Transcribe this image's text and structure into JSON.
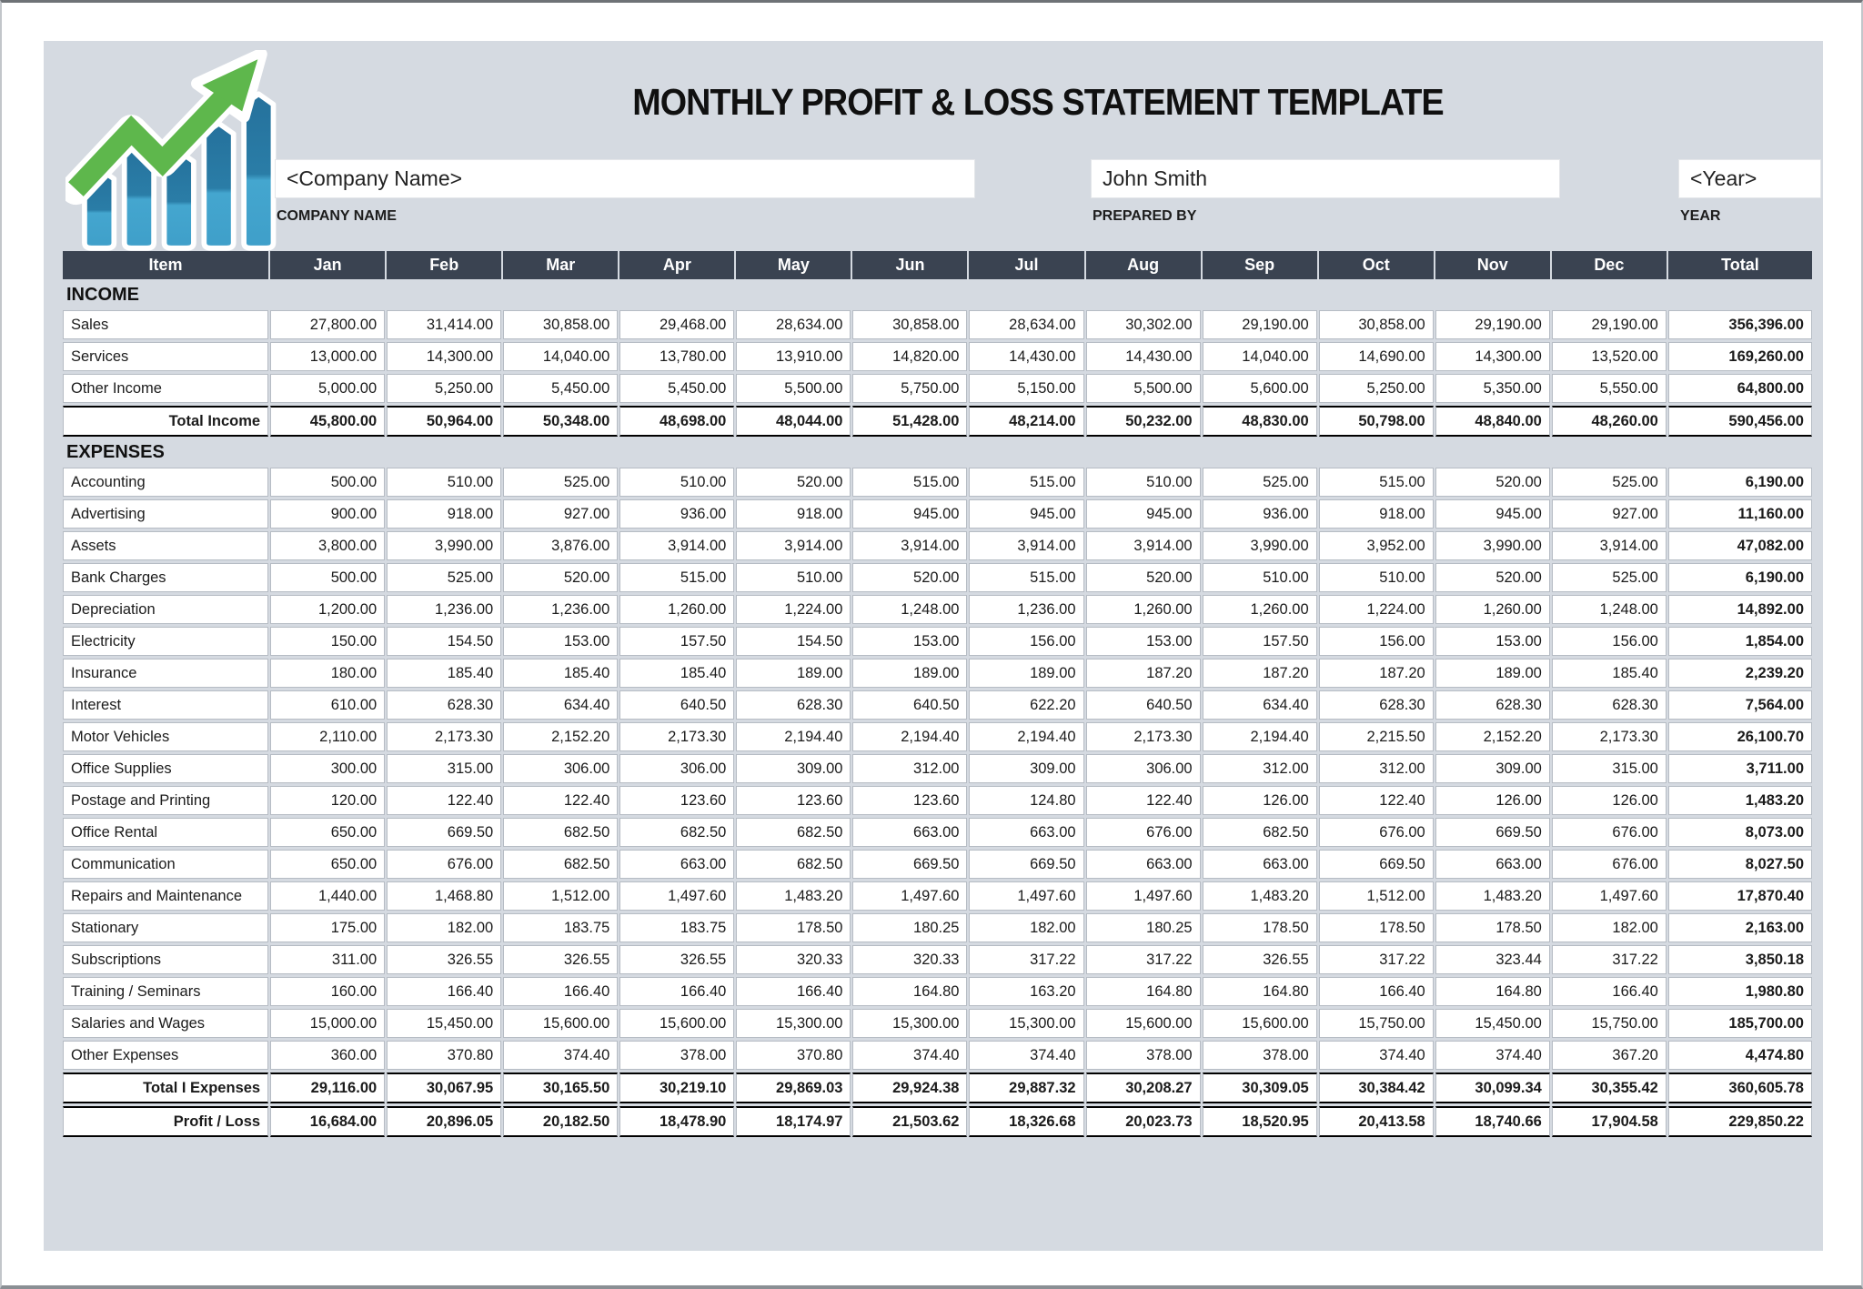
{
  "header": {
    "title": "MONTHLY PROFIT & LOSS STATEMENT TEMPLATE",
    "company": {
      "value": "<Company Name>",
      "label": "COMPANY NAME"
    },
    "prepared_by": {
      "value": "John Smith",
      "label": "PREPARED BY"
    },
    "year": {
      "value": "<Year>",
      "label": "YEAR"
    },
    "logo_icon": "growth-bar-chart-arrow-icon"
  },
  "colors": {
    "sheet_bg": "#d5dae1",
    "header_bg": "#3a4351",
    "logo_green": "#5eb74c",
    "logo_blue_dark": "#25719c",
    "logo_blue_light": "#44a6cf"
  },
  "table": {
    "columns": [
      "Item",
      "Jan",
      "Feb",
      "Mar",
      "Apr",
      "May",
      "Jun",
      "Jul",
      "Aug",
      "Sep",
      "Oct",
      "Nov",
      "Dec",
      "Total"
    ],
    "sections": [
      {
        "name": "INCOME",
        "rows": [
          {
            "label": "Sales",
            "values": [
              "27,800.00",
              "31,414.00",
              "30,858.00",
              "29,468.00",
              "28,634.00",
              "30,858.00",
              "28,634.00",
              "30,302.00",
              "29,190.00",
              "30,858.00",
              "29,190.00",
              "29,190.00"
            ],
            "total": "356,396.00"
          },
          {
            "label": "Services",
            "values": [
              "13,000.00",
              "14,300.00",
              "14,040.00",
              "13,780.00",
              "13,910.00",
              "14,820.00",
              "14,430.00",
              "14,430.00",
              "14,040.00",
              "14,690.00",
              "14,300.00",
              "13,520.00"
            ],
            "total": "169,260.00"
          },
          {
            "label": "Other Income",
            "values": [
              "5,000.00",
              "5,250.00",
              "5,450.00",
              "5,450.00",
              "5,500.00",
              "5,750.00",
              "5,150.00",
              "5,500.00",
              "5,600.00",
              "5,250.00",
              "5,350.00",
              "5,550.00"
            ],
            "total": "64,800.00"
          }
        ],
        "total": {
          "label": "Total Income",
          "values": [
            "45,800.00",
            "50,964.00",
            "50,348.00",
            "48,698.00",
            "48,044.00",
            "51,428.00",
            "48,214.00",
            "50,232.00",
            "48,830.00",
            "50,798.00",
            "48,840.00",
            "48,260.00"
          ],
          "total": "590,456.00"
        }
      },
      {
        "name": "EXPENSES",
        "rows": [
          {
            "label": "Accounting",
            "values": [
              "500.00",
              "510.00",
              "525.00",
              "510.00",
              "520.00",
              "515.00",
              "515.00",
              "510.00",
              "525.00",
              "515.00",
              "520.00",
              "525.00"
            ],
            "total": "6,190.00"
          },
          {
            "label": "Advertising",
            "values": [
              "900.00",
              "918.00",
              "927.00",
              "936.00",
              "918.00",
              "945.00",
              "945.00",
              "945.00",
              "936.00",
              "918.00",
              "945.00",
              "927.00"
            ],
            "total": "11,160.00"
          },
          {
            "label": "Assets",
            "values": [
              "3,800.00",
              "3,990.00",
              "3,876.00",
              "3,914.00",
              "3,914.00",
              "3,914.00",
              "3,914.00",
              "3,914.00",
              "3,990.00",
              "3,952.00",
              "3,990.00",
              "3,914.00"
            ],
            "total": "47,082.00"
          },
          {
            "label": "Bank Charges",
            "values": [
              "500.00",
              "525.00",
              "520.00",
              "515.00",
              "510.00",
              "520.00",
              "515.00",
              "520.00",
              "510.00",
              "510.00",
              "520.00",
              "525.00"
            ],
            "total": "6,190.00"
          },
          {
            "label": "Depreciation",
            "values": [
              "1,200.00",
              "1,236.00",
              "1,236.00",
              "1,260.00",
              "1,224.00",
              "1,248.00",
              "1,236.00",
              "1,260.00",
              "1,260.00",
              "1,224.00",
              "1,260.00",
              "1,248.00"
            ],
            "total": "14,892.00"
          },
          {
            "label": "Electricity",
            "values": [
              "150.00",
              "154.50",
              "153.00",
              "157.50",
              "154.50",
              "153.00",
              "156.00",
              "153.00",
              "157.50",
              "156.00",
              "153.00",
              "156.00"
            ],
            "total": "1,854.00"
          },
          {
            "label": "Insurance",
            "values": [
              "180.00",
              "185.40",
              "185.40",
              "185.40",
              "189.00",
              "189.00",
              "189.00",
              "187.20",
              "187.20",
              "187.20",
              "189.00",
              "185.40"
            ],
            "total": "2,239.20"
          },
          {
            "label": "Interest",
            "values": [
              "610.00",
              "628.30",
              "634.40",
              "640.50",
              "628.30",
              "640.50",
              "622.20",
              "640.50",
              "634.40",
              "628.30",
              "628.30",
              "628.30"
            ],
            "total": "7,564.00"
          },
          {
            "label": "Motor Vehicles",
            "values": [
              "2,110.00",
              "2,173.30",
              "2,152.20",
              "2,173.30",
              "2,194.40",
              "2,194.40",
              "2,194.40",
              "2,173.30",
              "2,194.40",
              "2,215.50",
              "2,152.20",
              "2,173.30"
            ],
            "total": "26,100.70"
          },
          {
            "label": "Office Supplies",
            "values": [
              "300.00",
              "315.00",
              "306.00",
              "306.00",
              "309.00",
              "312.00",
              "309.00",
              "306.00",
              "312.00",
              "312.00",
              "309.00",
              "315.00"
            ],
            "total": "3,711.00"
          },
          {
            "label": "Postage and Printing",
            "values": [
              "120.00",
              "122.40",
              "122.40",
              "123.60",
              "123.60",
              "123.60",
              "124.80",
              "122.40",
              "126.00",
              "122.40",
              "126.00",
              "126.00"
            ],
            "total": "1,483.20"
          },
          {
            "label": "Office Rental",
            "values": [
              "650.00",
              "669.50",
              "682.50",
              "682.50",
              "682.50",
              "663.00",
              "663.00",
              "676.00",
              "682.50",
              "676.00",
              "669.50",
              "676.00"
            ],
            "total": "8,073.00"
          },
          {
            "label": "Communication",
            "values": [
              "650.00",
              "676.00",
              "682.50",
              "663.00",
              "682.50",
              "669.50",
              "669.50",
              "663.00",
              "663.00",
              "669.50",
              "663.00",
              "676.00"
            ],
            "total": "8,027.50"
          },
          {
            "label": "Repairs and Maintenance",
            "values": [
              "1,440.00",
              "1,468.80",
              "1,512.00",
              "1,497.60",
              "1,483.20",
              "1,497.60",
              "1,497.60",
              "1,497.60",
              "1,483.20",
              "1,512.00",
              "1,483.20",
              "1,497.60"
            ],
            "total": "17,870.40"
          },
          {
            "label": "Stationary",
            "values": [
              "175.00",
              "182.00",
              "183.75",
              "183.75",
              "178.50",
              "180.25",
              "182.00",
              "180.25",
              "178.50",
              "178.50",
              "178.50",
              "182.00"
            ],
            "total": "2,163.00"
          },
          {
            "label": "Subscriptions",
            "values": [
              "311.00",
              "326.55",
              "326.55",
              "326.55",
              "320.33",
              "320.33",
              "317.22",
              "317.22",
              "326.55",
              "317.22",
              "323.44",
              "317.22"
            ],
            "total": "3,850.18"
          },
          {
            "label": "Training / Seminars",
            "values": [
              "160.00",
              "166.40",
              "166.40",
              "166.40",
              "166.40",
              "164.80",
              "163.20",
              "164.80",
              "164.80",
              "166.40",
              "164.80",
              "166.40"
            ],
            "total": "1,980.80"
          },
          {
            "label": "Salaries and Wages",
            "values": [
              "15,000.00",
              "15,450.00",
              "15,600.00",
              "15,600.00",
              "15,300.00",
              "15,300.00",
              "15,300.00",
              "15,600.00",
              "15,600.00",
              "15,750.00",
              "15,450.00",
              "15,750.00"
            ],
            "total": "185,700.00"
          },
          {
            "label": "Other Expenses",
            "values": [
              "360.00",
              "370.80",
              "374.40",
              "378.00",
              "370.80",
              "374.40",
              "374.40",
              "378.00",
              "378.00",
              "374.40",
              "374.40",
              "367.20"
            ],
            "total": "4,474.80"
          }
        ],
        "total": {
          "label": "Total I Expenses",
          "values": [
            "29,116.00",
            "30,067.95",
            "30,165.50",
            "30,219.10",
            "29,869.03",
            "29,924.38",
            "29,887.32",
            "30,208.27",
            "30,309.05",
            "30,384.42",
            "30,099.34",
            "30,355.42"
          ],
          "total": "360,605.78"
        }
      }
    ],
    "profit_loss": {
      "label": "Profit / Loss",
      "values": [
        "16,684.00",
        "20,896.05",
        "20,182.50",
        "18,478.90",
        "18,174.97",
        "21,503.62",
        "18,326.68",
        "20,023.73",
        "18,520.95",
        "20,413.58",
        "18,740.66",
        "17,904.58"
      ],
      "total": "229,850.22"
    }
  }
}
